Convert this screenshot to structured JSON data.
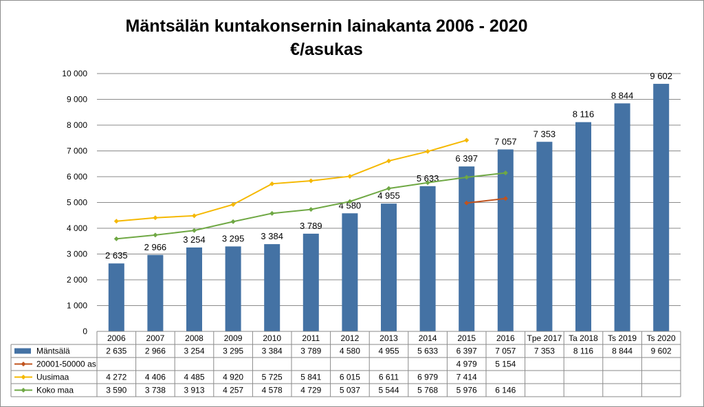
{
  "chart_data": {
    "type": "bar",
    "title_line1": "Mäntsälän kuntakonsernin lainakanta 2006 - 2020",
    "title_line2": "€/asukas",
    "ylim": [
      0,
      10000
    ],
    "yticks": [
      0,
      1000,
      2000,
      3000,
      4000,
      5000,
      6000,
      7000,
      8000,
      9000,
      10000
    ],
    "ytick_labels": [
      "0",
      "1 000",
      "2 000",
      "3 000",
      "4 000",
      "5 000",
      "6 000",
      "7 000",
      "8 000",
      "9 000",
      "10 000"
    ],
    "grid": true,
    "categories": [
      "2006",
      "2007",
      "2008",
      "2009",
      "2010",
      "2011",
      "2012",
      "2013",
      "2014",
      "2015",
      "2016",
      "Tpe 2017",
      "Ta 2018",
      "Ts 2019",
      "Ts 2020"
    ],
    "series": [
      {
        "name": "Mäntsälä",
        "kind": "bar",
        "color": "#4472a4",
        "values": [
          2635,
          2966,
          3254,
          3295,
          3384,
          3789,
          4580,
          4955,
          5633,
          6397,
          7057,
          7353,
          8116,
          8844,
          9602
        ],
        "labels": [
          "2 635",
          "2 966",
          "3 254",
          "3 295",
          "3 384",
          "3 789",
          "4 580",
          "4 955",
          "5 633",
          "6 397",
          "7 057",
          "7 353",
          "8 116",
          "8 844",
          "9 602"
        ]
      },
      {
        "name": "20001-50000 as",
        "kind": "line",
        "color": "#c0531e",
        "values": [
          null,
          null,
          null,
          null,
          null,
          null,
          null,
          null,
          null,
          4979,
          5154,
          null,
          null,
          null,
          null
        ],
        "labels": [
          "",
          "",
          "",
          "",
          "",
          "",
          "",
          "",
          "",
          "4 979",
          "5 154",
          "",
          "",
          "",
          ""
        ]
      },
      {
        "name": "Uusimaa",
        "kind": "line",
        "color": "#f5b800",
        "values": [
          4272,
          4406,
          4485,
          4920,
          5725,
          5841,
          6015,
          6611,
          6979,
          7414,
          null,
          null,
          null,
          null,
          null
        ],
        "labels": [
          "4 272",
          "4 406",
          "4 485",
          "4 920",
          "5 725",
          "5 841",
          "6 015",
          "6 611",
          "6 979",
          "7 414",
          "",
          "",
          "",
          "",
          ""
        ]
      },
      {
        "name": "Koko maa",
        "kind": "line",
        "color": "#6fa844",
        "values": [
          3590,
          3738,
          3913,
          4257,
          4578,
          4729,
          5037,
          5544,
          5768,
          5976,
          6146,
          null,
          null,
          null,
          null
        ],
        "labels": [
          "3 590",
          "3 738",
          "3 913",
          "4 257",
          "4 578",
          "4 729",
          "5 037",
          "5 544",
          "5 768",
          "5 976",
          "6 146",
          "",
          "",
          "",
          ""
        ]
      }
    ]
  }
}
